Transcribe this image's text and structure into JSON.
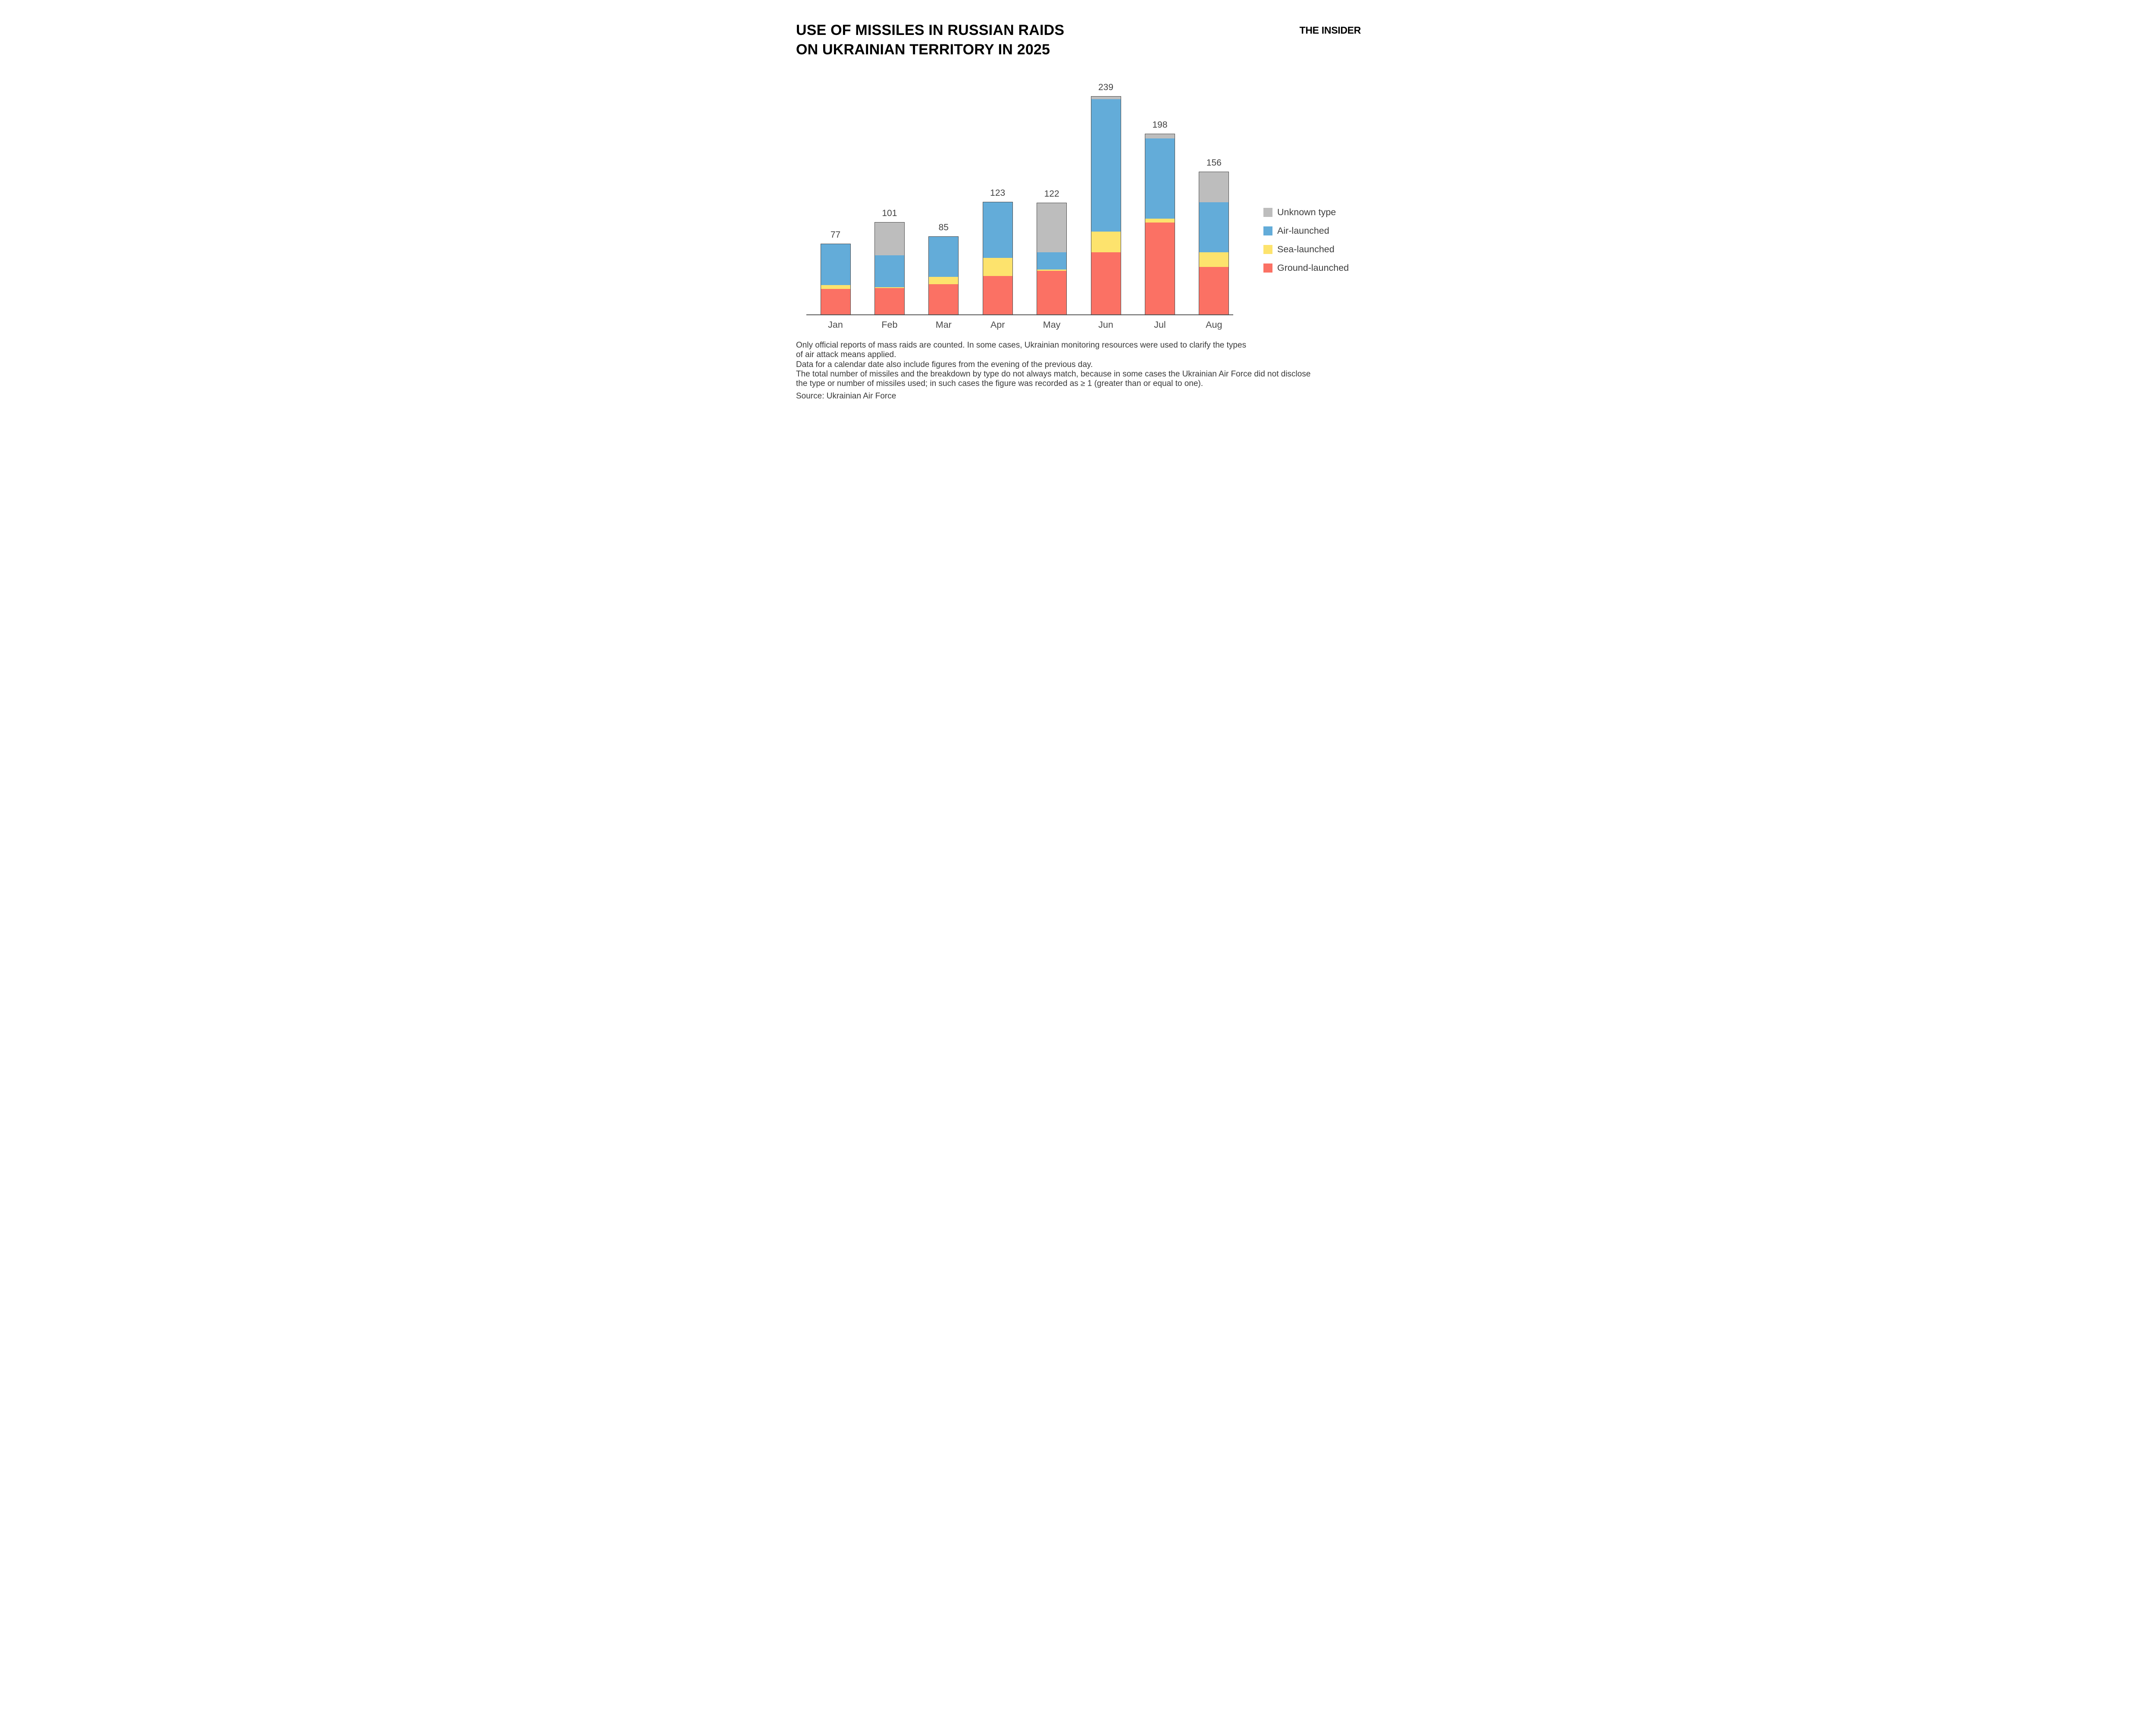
{
  "header": {
    "title_line1": "USE OF MISSILES IN RUSSIAN RAIDS",
    "title_line2": "ON UKRAINIAN TERRITORY IN 2025",
    "logo": "THE INSIDER"
  },
  "chart_data": {
    "type": "bar",
    "stacked": true,
    "title": "USE OF MISSILES IN RUSSIAN RAIDS ON UKRAINIAN TERRITORY IN 2025",
    "categories": [
      "Jan",
      "Feb",
      "Mar",
      "Apr",
      "May",
      "Jun",
      "Jul",
      "Aug"
    ],
    "totals": [
      77,
      101,
      85,
      123,
      122,
      239,
      198,
      156
    ],
    "series": [
      {
        "name": "Ground-launched",
        "color": "#fb7164",
        "values": [
          28,
          29,
          33,
          42,
          48,
          68,
          101,
          52
        ]
      },
      {
        "name": "Sea-launched",
        "color": "#fde36d",
        "values": [
          4,
          1,
          8,
          20,
          1,
          23,
          4,
          16
        ]
      },
      {
        "name": "Air-launched",
        "color": "#63acd9",
        "values": [
          45,
          35,
          44,
          61,
          19,
          145,
          88,
          55
        ]
      },
      {
        "name": "Unknown type",
        "color": "#bdbdbd",
        "values": [
          0,
          36,
          0,
          0,
          54,
          3,
          5,
          33
        ]
      }
    ],
    "legend_order": [
      "Unknown type",
      "Air-launched",
      "Sea-launched",
      "Ground-launched"
    ],
    "legend_position": "right",
    "grid": false,
    "ylim": [
      0,
      260
    ],
    "bar_border_color": "#4a4a4a",
    "axis_line_color": "#5a5a5a",
    "value_label_color": "#424242"
  },
  "footnotes": {
    "lines": [
      "Only official reports of mass raids are counted. In some cases, Ukrainian monitoring resources were used to clarify the types",
      "of air attack means applied.",
      "Data for a calendar date also include figures from the evening of the previous day.",
      "The total number of missiles and the breakdown by type do not always match, because in some cases the Ukrainian Air Force did not disclose",
      "the type or number of missiles used; in such cases the figure was recorded as ≥ 1 (greater than or equal to one)."
    ],
    "source": "Source: Ukrainian Air Force"
  }
}
